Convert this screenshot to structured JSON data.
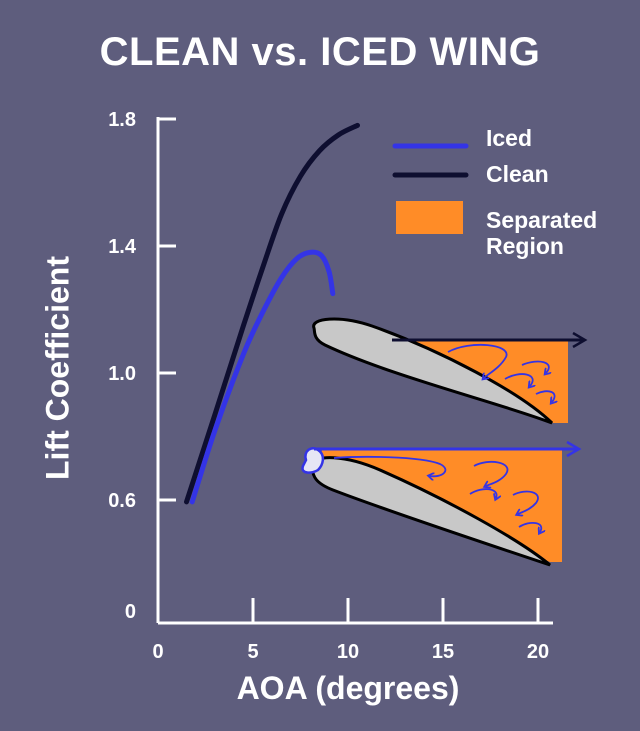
{
  "chart_data": {
    "type": "line",
    "title": "CLEAN vs. ICED WING",
    "xlabel": "AOA (degrees)",
    "ylabel": "Lift Coefficient",
    "xlim": [
      0,
      21
    ],
    "ylim_ticks": [
      0,
      0.6,
      1.0,
      1.4,
      1.8
    ],
    "x_ticks": [
      0,
      5,
      10,
      15,
      20
    ],
    "y_tick_labels": [
      "0",
      "0.6",
      "1.0",
      "1.4",
      "1.8"
    ],
    "axis_note": "vertical axis is broken between 0 and 0.6",
    "series": [
      {
        "name": "Iced",
        "color": "#3434e6",
        "points": [
          [
            1.8,
            0.59
          ],
          [
            3.0,
            0.82
          ],
          [
            4.5,
            1.06
          ],
          [
            5.5,
            1.19
          ],
          [
            6.5,
            1.3
          ],
          [
            7.3,
            1.36
          ],
          [
            8.0,
            1.38
          ],
          [
            8.6,
            1.37
          ],
          [
            9.0,
            1.32
          ],
          [
            9.2,
            1.25
          ]
        ]
      },
      {
        "name": "Clean",
        "color": "#0e0e30",
        "points": [
          [
            1.5,
            0.59
          ],
          [
            3.0,
            0.87
          ],
          [
            4.5,
            1.15
          ],
          [
            5.5,
            1.33
          ],
          [
            6.5,
            1.5
          ],
          [
            7.5,
            1.62
          ],
          [
            8.5,
            1.7
          ],
          [
            9.5,
            1.75
          ],
          [
            10.5,
            1.78
          ]
        ]
      }
    ],
    "legend": {
      "placement": "top-right",
      "entries": [
        "Iced",
        "Clean"
      ],
      "separated_region_label": "Separated Region",
      "separated_region_color": "#ff8c27"
    },
    "airfoil_illustrations": [
      {
        "name": "clean-airfoil",
        "color": "#c8c8c8"
      },
      {
        "name": "iced-airfoil",
        "color": "#c8c8c8",
        "ice_color": "#e6e6f5"
      }
    ]
  }
}
